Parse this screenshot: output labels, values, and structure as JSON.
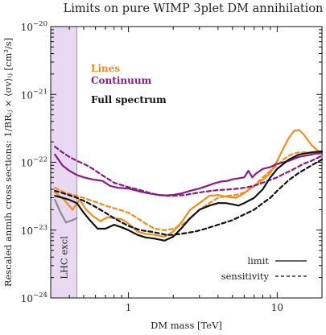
{
  "chart_data": {
    "type": "line",
    "title": "Limits on pure WIMP 3plet DM annihilation",
    "xlabel": "DM mass [TeV]",
    "ylabel": "Rescaled anmih cross sections: 1/BRᵢⱼ × ⟨σv⟩ᵢⱼ  [cm³/s]",
    "x_scale": "log",
    "y_scale": "log",
    "xlim": [
      0.3,
      20
    ],
    "ylim": [
      1e-24,
      1e-20
    ],
    "x_tick_labels": [
      "1",
      "10"
    ],
    "y_tick_labels": [
      {
        "base": "10",
        "exp": "−24"
      },
      {
        "base": "10",
        "exp": "−23"
      },
      {
        "base": "10",
        "exp": "−22"
      },
      {
        "base": "10",
        "exp": "−21"
      },
      {
        "base": "10",
        "exp": "−20"
      }
    ],
    "excluded_band": {
      "label": "LHC excl",
      "x_range": [
        0.3,
        0.45
      ],
      "color": "#b27fcf"
    },
    "legend_top": [
      {
        "label": "Lines",
        "color": "#f28c1e"
      },
      {
        "label": "Continuum",
        "color": "#8a1a8a"
      },
      {
        "label": "Full spectrum",
        "color": "#111111"
      }
    ],
    "legend_bottom": [
      {
        "label": "limit",
        "style": "solid"
      },
      {
        "label": "sensitivity",
        "style": "dashed"
      }
    ],
    "series": [
      {
        "name": "Lines",
        "style": "solid",
        "color": "#f28c1e",
        "x": [
          0.32,
          0.37,
          0.42,
          0.47,
          0.52,
          0.58,
          0.65,
          0.72,
          0.8,
          0.9,
          1.0,
          1.15,
          1.3,
          1.5,
          1.75,
          2.0,
          2.3,
          2.6,
          3.0,
          3.5,
          4.0,
          4.6,
          5.3,
          6.0,
          7.0,
          8.0,
          9.0,
          10.0,
          11.0,
          12.0,
          13.0,
          14.0,
          15.0,
          17.0,
          20.0
        ],
        "y": [
          3.6e-23,
          2.8e-23,
          2e-23,
          2.8e-23,
          2e-23,
          1.6e-23,
          1.35e-23,
          1.55e-23,
          1.5e-23,
          1.45e-23,
          1.25e-23,
          9.5e-24,
          8.8e-24,
          8.5e-24,
          8e-24,
          9.5e-24,
          1.35e-23,
          2e-23,
          2.5e-23,
          3.2e-23,
          3.3e-23,
          3.1e-23,
          3e-23,
          3.5e-23,
          4.5e-23,
          5.5e-23,
          7e-23,
          1.05e-22,
          1.6e-22,
          2.3e-22,
          2.9e-22,
          3e-22,
          2.6e-22,
          1.8e-22,
          1.3e-22
        ]
      },
      {
        "name": "Lines",
        "style": "dashed",
        "color": "#f28c1e",
        "x": [
          0.32,
          0.38,
          0.45,
          0.52,
          0.6,
          0.7,
          0.8,
          0.9,
          1.0,
          1.15,
          1.3,
          1.5,
          1.75,
          2.0,
          2.3,
          2.6,
          3.0,
          3.5,
          4.0,
          4.6,
          5.3,
          6.0,
          7.0,
          8.0,
          9.0,
          10.0,
          11.0,
          12.0,
          13.0,
          14.0,
          16.0,
          18.0,
          20.0
        ],
        "y": [
          4.2e-23,
          3.5e-23,
          3.2e-23,
          2.9e-23,
          2.6e-23,
          2.3e-23,
          2.1e-23,
          1.95e-23,
          1.8e-23,
          1.5e-23,
          1.25e-23,
          1.05e-23,
          1e-23,
          1.05e-23,
          1.2e-23,
          1.5e-23,
          2e-23,
          2.5e-23,
          3e-23,
          3.2e-23,
          3.3e-23,
          3.6e-23,
          4.5e-23,
          6e-23,
          7.5e-23,
          9e-23,
          1.1e-22,
          1.25e-22,
          1.35e-22,
          1.4e-22,
          1.4e-22,
          1.35e-22,
          1.3e-22
        ]
      },
      {
        "name": "Continuum",
        "style": "solid",
        "color": "#8a1a8a",
        "x": [
          0.32,
          0.36,
          0.4,
          0.45,
          0.5,
          0.55,
          0.6,
          0.67,
          0.75,
          0.85,
          1.0,
          1.2,
          1.4,
          1.6,
          1.8,
          2.0,
          2.3,
          2.6,
          3.0,
          3.4,
          3.8,
          4.2,
          4.6,
          5.0,
          5.5,
          6.0,
          6.4,
          6.8,
          7.2,
          8.0,
          9.0,
          10.0,
          12.0,
          14.0,
          17.0,
          20.0
        ],
        "y": [
          1.3e-22,
          9e-23,
          7.5e-23,
          6.5e-23,
          6e-23,
          5.7e-23,
          5.5e-23,
          5.3e-23,
          4.5e-23,
          4.2e-23,
          4.1e-23,
          3.7e-23,
          3.45e-23,
          3.3e-23,
          3.25e-23,
          3.3e-23,
          3.5e-23,
          3.8e-23,
          4.1e-23,
          4.5e-23,
          4.9e-23,
          5.2e-23,
          5.3e-23,
          5.6e-23,
          5.8e-23,
          6e-23,
          7.5e-23,
          6e-23,
          6.8e-23,
          8e-23,
          8.5e-23,
          9.5e-23,
          1.05e-22,
          1.2e-22,
          1.3e-22,
          1.4e-22
        ]
      },
      {
        "name": "Continuum",
        "style": "dashed",
        "color": "#8a1a8a",
        "x": [
          0.32,
          0.36,
          0.4,
          0.45,
          0.5,
          0.56,
          0.63,
          0.7,
          0.8,
          0.9,
          1.0,
          1.2,
          1.4,
          1.6,
          1.8,
          2.0,
          2.4,
          2.8,
          3.3,
          4.0,
          5.0,
          6.0,
          7.0,
          8.0,
          9.0,
          10.0,
          11.0,
          12.0,
          13.0,
          14.0,
          15.0,
          17.0,
          20.0
        ],
        "y": [
          1.7e-22,
          1.4e-22,
          1.2e-22,
          1.05e-22,
          9.5e-23,
          8.3e-23,
          7e-23,
          6e-23,
          5e-23,
          4.6e-23,
          4.3e-23,
          3.9e-23,
          3.5e-23,
          3.3e-23,
          3.2e-23,
          3.2e-23,
          3.3e-23,
          3.5e-23,
          3.7e-23,
          3.9e-23,
          4e-23,
          4.2e-23,
          4.5e-23,
          5e-23,
          5.5e-23,
          6e-23,
          6.7e-23,
          7.3e-23,
          8e-23,
          8.7e-23,
          9.5e-23,
          1.05e-22,
          1.25e-22
        ]
      },
      {
        "name": "Full spectrum",
        "style": "solid",
        "color": "#111111",
        "x": [
          0.32,
          0.36,
          0.4,
          0.45,
          0.5,
          0.55,
          0.62,
          0.7,
          0.8,
          0.9,
          1.0,
          1.15,
          1.3,
          1.5,
          1.75,
          2.0,
          2.3,
          2.6,
          3.0,
          3.5,
          4.0,
          4.5,
          5.0,
          5.5,
          6.0,
          7.0,
          8.0,
          9.0,
          10.0,
          12.0,
          14.0,
          17.0,
          20.0
        ],
        "y": [
          3.2e-23,
          3e-23,
          2.8e-23,
          2.5e-23,
          1.8e-23,
          1.4e-23,
          1.05e-23,
          1.05e-23,
          1.2e-23,
          1.1e-23,
          1e-23,
          8.5e-24,
          7.8e-24,
          7.5e-24,
          7e-24,
          8e-24,
          1.1e-23,
          1.5e-23,
          2e-23,
          2.3e-23,
          2.5e-23,
          2.5e-23,
          2.4e-23,
          2.3e-23,
          2.5e-23,
          3e-23,
          4e-23,
          6e-23,
          8e-23,
          1.1e-22,
          1.3e-22,
          1.4e-22,
          1.45e-22
        ]
      },
      {
        "name": "Full spectrum",
        "style": "dashed",
        "color": "#111111",
        "x": [
          0.32,
          0.38,
          0.45,
          0.52,
          0.6,
          0.7,
          0.8,
          0.9,
          1.0,
          1.2,
          1.4,
          1.6,
          1.8,
          2.0,
          2.4,
          2.8,
          3.3,
          4.0,
          5.0,
          6.0,
          7.0,
          8.0,
          9.0,
          10.0,
          12.0,
          14.0,
          17.0,
          20.0
        ],
        "y": [
          3.8e-23,
          3.4e-23,
          3e-23,
          2.6e-23,
          2.2e-23,
          1.8e-23,
          1.5e-23,
          1.3e-23,
          1.15e-23,
          1e-23,
          9.5e-24,
          9e-24,
          8.5e-24,
          8.5e-24,
          9e-24,
          9.5e-24,
          1.05e-23,
          1.2e-23,
          1.4e-23,
          1.7e-23,
          2e-23,
          2.5e-23,
          3e-23,
          3.8e-23,
          5.5e-23,
          7e-23,
          9e-23,
          1.1e-22
        ]
      },
      {
        "name": "",
        "style": "solid",
        "color": "#8c8c8c",
        "x": [
          0.32,
          0.35,
          0.38,
          0.42,
          0.45
        ],
        "y": [
          2.8e-23,
          1.8e-23,
          1.3e-23,
          1.4e-23,
          1.5e-23
        ]
      }
    ]
  }
}
